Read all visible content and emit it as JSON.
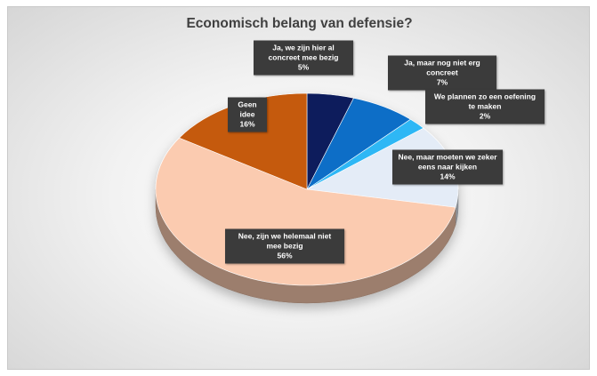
{
  "chart_data": {
    "type": "pie",
    "title": "Economisch belang van defensie?",
    "slices": [
      {
        "label": "Ja, we zijn hier al concreet mee bezig",
        "value": 5,
        "value_label": "5%",
        "color": "#0a1f5c"
      },
      {
        "label": "Ja, maar nog niet erg concreet",
        "value": 7,
        "value_label": "7%",
        "color": "#0b6ec7"
      },
      {
        "label": "We plannen zo een oefening te maken",
        "value": 2,
        "value_label": "2%",
        "color": "#2db7f5"
      },
      {
        "label": "Nee, maar moeten we zeker eens naar kijken",
        "value": 14,
        "value_label": "14%",
        "color": "#e4ecf7"
      },
      {
        "label": "Nee, zijn we helemaal niet mee bezig",
        "value": 56,
        "value_label": "56%",
        "color": "#fbcbb0"
      },
      {
        "label": "Geen idee",
        "value": 16,
        "value_label": "16%",
        "color": "#c55a11"
      }
    ],
    "legend": "none",
    "data_labels": "callouts",
    "style": "3d-pie"
  }
}
